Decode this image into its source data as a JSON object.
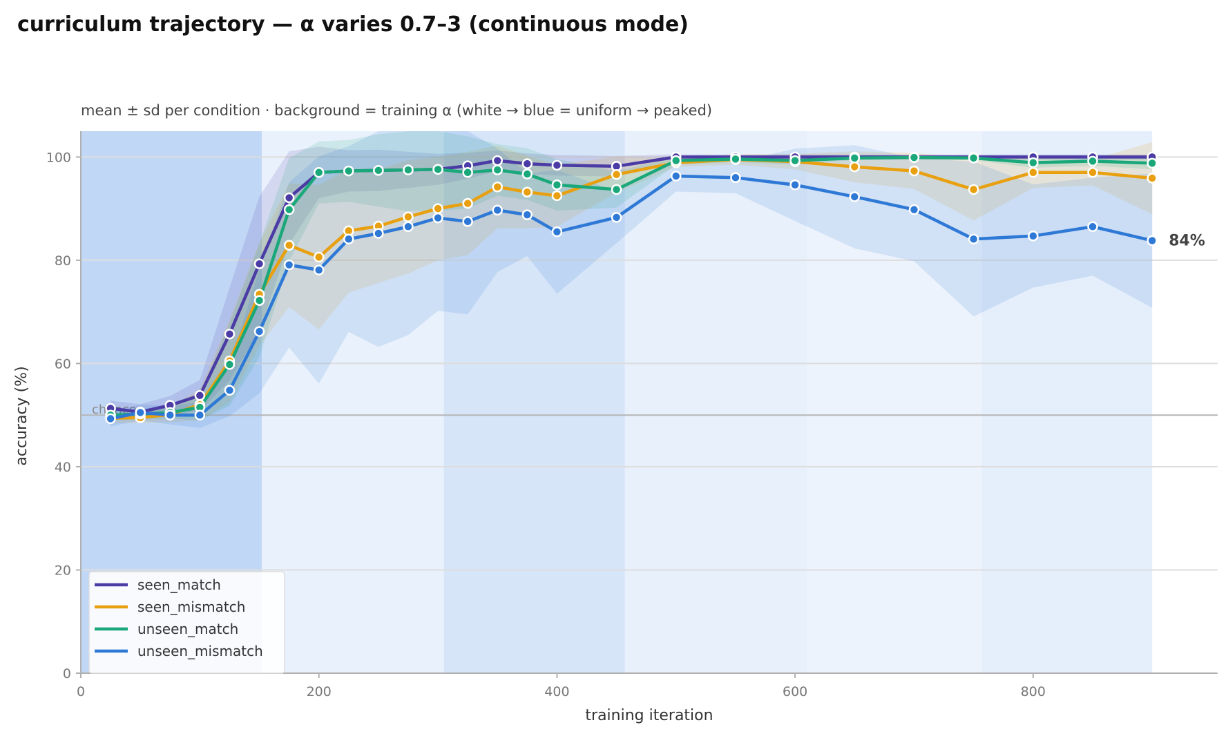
{
  "chart_data": {
    "type": "line",
    "title": "curriculum trajectory — α varies 0.7–3 (continuous mode)",
    "subtitle": "mean ± sd per condition · background = training α (white → blue = uniform → peaked)",
    "xlabel": "training iteration",
    "ylabel": "accuracy (%)",
    "xlim": [
      0,
      955
    ],
    "ylim": [
      0,
      105
    ],
    "xticks": [
      0,
      200,
      400,
      600,
      800
    ],
    "yticks": [
      0,
      20,
      40,
      60,
      80,
      100
    ],
    "grid": "horizontal",
    "legend_position": "lower-left",
    "reference_line": {
      "value": 50,
      "label": "chance"
    },
    "end_label": {
      "series": "unseen_mismatch",
      "text": "84%",
      "x": 900,
      "y": 83.8
    },
    "background_bands": [
      {
        "x0": 0,
        "x1": 152,
        "alpha_level": 1.0
      },
      {
        "x0": 152,
        "x1": 305,
        "alpha_level": 0.15
      },
      {
        "x0": 305,
        "x1": 457,
        "alpha_level": 0.55
      },
      {
        "x0": 457,
        "x1": 610,
        "alpha_level": 0.2
      },
      {
        "x0": 610,
        "x1": 757,
        "alpha_level": 0.08
      },
      {
        "x0": 757,
        "x1": 900,
        "alpha_level": 0.25
      }
    ],
    "x": [
      25,
      50,
      75,
      100,
      125,
      150,
      175,
      200,
      225,
      250,
      275,
      300,
      325,
      350,
      375,
      400,
      450,
      500,
      550,
      600,
      650,
      700,
      750,
      800,
      850,
      900
    ],
    "series": [
      {
        "name": "seen_match",
        "color": "#4b3ba5",
        "values": [
          51.3,
          50.6,
          51.9,
          53.8,
          65.7,
          79.3,
          92.1,
          97.0,
          97.3,
          97.4,
          97.5,
          97.6,
          98.3,
          99.3,
          98.7,
          98.4,
          98.2,
          100.0,
          100.0,
          100.0,
          100.0,
          100.0,
          100.0,
          100.0,
          100.0,
          100.0
        ],
        "sd": [
          1.5,
          1.5,
          1.8,
          3.0,
          9.0,
          13.0,
          9.0,
          5.0,
          4.0,
          4.0,
          3.5,
          3.0,
          2.5,
          2.0,
          2.0,
          2.0,
          2.0,
          0.5,
          0.5,
          0.5,
          0.5,
          0.5,
          0.5,
          0.5,
          0.5,
          0.5
        ]
      },
      {
        "name": "seen_mismatch",
        "color": "#e8a010",
        "values": [
          49.4,
          49.5,
          50.1,
          52.0,
          60.5,
          73.4,
          82.9,
          80.6,
          85.7,
          86.6,
          88.4,
          90.0,
          91.0,
          94.2,
          93.2,
          92.5,
          96.6,
          98.9,
          99.5,
          99.1,
          98.1,
          97.3,
          93.7,
          97.0,
          97.0,
          95.9
        ],
        "sd": [
          1.0,
          1.0,
          1.5,
          3.0,
          8.0,
          10.0,
          12.0,
          14.0,
          12.0,
          11.0,
          11.0,
          10.0,
          10.0,
          8.0,
          7.0,
          6.0,
          3.5,
          0.8,
          1.0,
          1.5,
          3.0,
          3.5,
          6.0,
          3.0,
          2.5,
          7.0
        ]
      },
      {
        "name": "unseen_match",
        "color": "#1aa87a",
        "values": [
          50.0,
          50.2,
          50.5,
          51.5,
          59.8,
          72.2,
          89.8,
          97.0,
          97.3,
          97.4,
          97.5,
          97.6,
          97.0,
          97.5,
          96.7,
          94.6,
          93.7,
          99.3,
          99.6,
          99.3,
          99.8,
          99.9,
          99.8,
          98.9,
          99.2,
          98.8
        ],
        "sd": [
          1.0,
          1.0,
          1.2,
          2.5,
          8.0,
          11.0,
          10.0,
          6.0,
          6.0,
          7.0,
          8.0,
          8.0,
          7.0,
          5.0,
          5.0,
          5.0,
          3.5,
          0.8,
          0.6,
          0.8,
          0.4,
          0.3,
          0.4,
          1.0,
          0.9,
          1.2
        ]
      },
      {
        "name": "unseen_mismatch",
        "color": "#2e78d6",
        "values": [
          49.3,
          50.5,
          50.0,
          50.0,
          54.8,
          66.2,
          79.1,
          78.1,
          84.1,
          85.2,
          86.5,
          88.2,
          87.5,
          89.7,
          88.8,
          85.5,
          88.3,
          96.3,
          96.0,
          94.6,
          92.3,
          89.8,
          84.1,
          84.7,
          86.5,
          83.8
        ],
        "sd": [
          1.5,
          1.5,
          1.8,
          2.5,
          5.0,
          12.0,
          16.0,
          22.0,
          18.0,
          22.0,
          21.0,
          18.0,
          18.0,
          12.0,
          8.0,
          12.0,
          5.0,
          3.0,
          3.0,
          7.0,
          10.0,
          10.0,
          15.0,
          10.0,
          9.5,
          13.0
        ]
      }
    ]
  }
}
